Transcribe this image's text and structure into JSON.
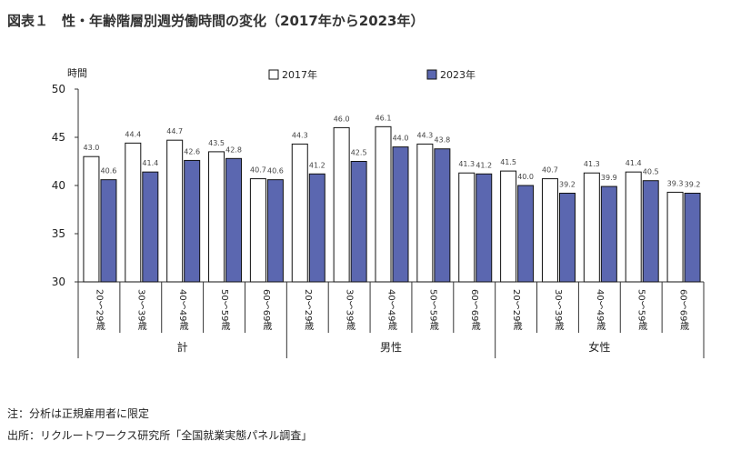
{
  "page": {
    "title": "図表１　性・年齢階層別週労働時間の変化（2017年から2023年）",
    "note": "注：分析は正規雇用者に限定",
    "source": "出所：リクルートワークス研究所「全国就業実態パネル調査」"
  },
  "chart_data": {
    "type": "bar",
    "ylabel": "時間",
    "ylim": [
      30,
      50
    ],
    "yticks": [
      30,
      35,
      40,
      45,
      50
    ],
    "grid": false,
    "legend": "top",
    "categories": [
      "20～29歳",
      "30～39歳",
      "40～49歳",
      "50～59歳",
      "60～69歳",
      "20～29歳",
      "30～39歳",
      "40～49歳",
      "50～59歳",
      "60～69歳",
      "20～29歳",
      "30～39歳",
      "40～49歳",
      "50～59歳",
      "60～69歳"
    ],
    "groups": [
      {
        "label": "計",
        "count": 5
      },
      {
        "label": "男性",
        "count": 5
      },
      {
        "label": "女性",
        "count": 5
      }
    ],
    "series": [
      {
        "name": "2017年",
        "color": "#ffffff",
        "values": [
          43.0,
          44.4,
          44.7,
          43.5,
          40.7,
          44.3,
          46.0,
          46.1,
          44.3,
          41.3,
          41.5,
          40.7,
          41.3,
          41.4,
          39.3
        ]
      },
      {
        "name": "2023年",
        "color": "#5b67b0",
        "values": [
          40.6,
          41.4,
          42.6,
          42.8,
          40.6,
          41.2,
          42.5,
          44.0,
          43.8,
          41.2,
          40.0,
          39.2,
          39.9,
          40.5,
          39.2
        ]
      }
    ]
  }
}
